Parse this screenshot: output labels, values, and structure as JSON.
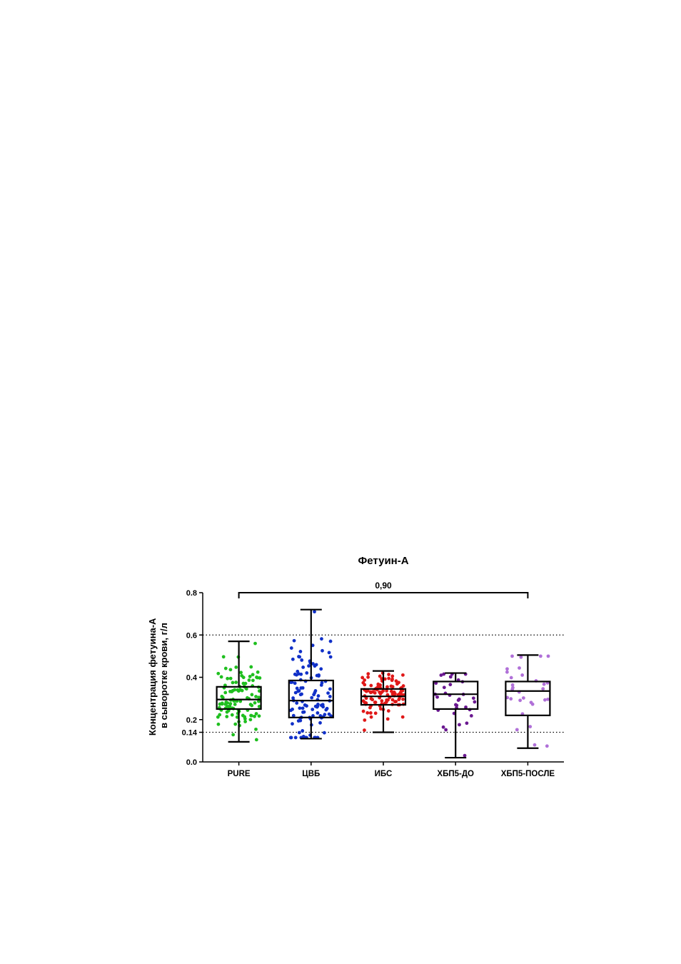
{
  "chart_data": {
    "type": "box",
    "title": "Фетуин-А",
    "ylabel_lines": [
      "Концентрация фетуина-А",
      "в сыворотке крови, г/л"
    ],
    "xlabel": "",
    "ylim": [
      0,
      0.8
    ],
    "yticks": [
      {
        "value": 0.0,
        "label": "0.0"
      },
      {
        "value": 0.14,
        "label": "0.14"
      },
      {
        "value": 0.2,
        "label": "0.2"
      },
      {
        "value": 0.4,
        "label": "0.4"
      },
      {
        "value": 0.6,
        "label": "0.6"
      },
      {
        "value": 0.8,
        "label": "0.8"
      }
    ],
    "reference_lines": [
      0.6,
      0.14
    ],
    "categories": [
      "PURE",
      "ЦВБ",
      "ИБС",
      "ХБП5-ДО",
      "ХБП5-ПОСЛЕ"
    ],
    "series": [
      {
        "category": "PURE",
        "color": "#1fbf1f",
        "min": 0.095,
        "q1": 0.25,
        "median": 0.295,
        "q3": 0.355,
        "max": 0.57,
        "n_points": 110
      },
      {
        "category": "ЦВБ",
        "color": "#1030c8",
        "min": 0.11,
        "q1": 0.21,
        "median": 0.29,
        "q3": 0.385,
        "max": 0.72,
        "n_points": 115
      },
      {
        "category": "ИБС",
        "color": "#e01818",
        "min": 0.14,
        "q1": 0.27,
        "median": 0.31,
        "q3": 0.345,
        "max": 0.43,
        "n_points": 110
      },
      {
        "category": "ХБП5-ДО",
        "color": "#6a1890",
        "min": 0.02,
        "q1": 0.25,
        "median": 0.32,
        "q3": 0.38,
        "max": 0.42,
        "n_points": 32
      },
      {
        "category": "ХБП5-ПОСЛЕ",
        "color": "#b070d8",
        "min": 0.065,
        "q1": 0.22,
        "median": 0.335,
        "q3": 0.38,
        "max": 0.505,
        "n_points": 30
      }
    ],
    "annotations": [
      {
        "text": "0,90",
        "from": "PURE",
        "to": "ХБП5-ПОСЛЕ"
      }
    ]
  }
}
